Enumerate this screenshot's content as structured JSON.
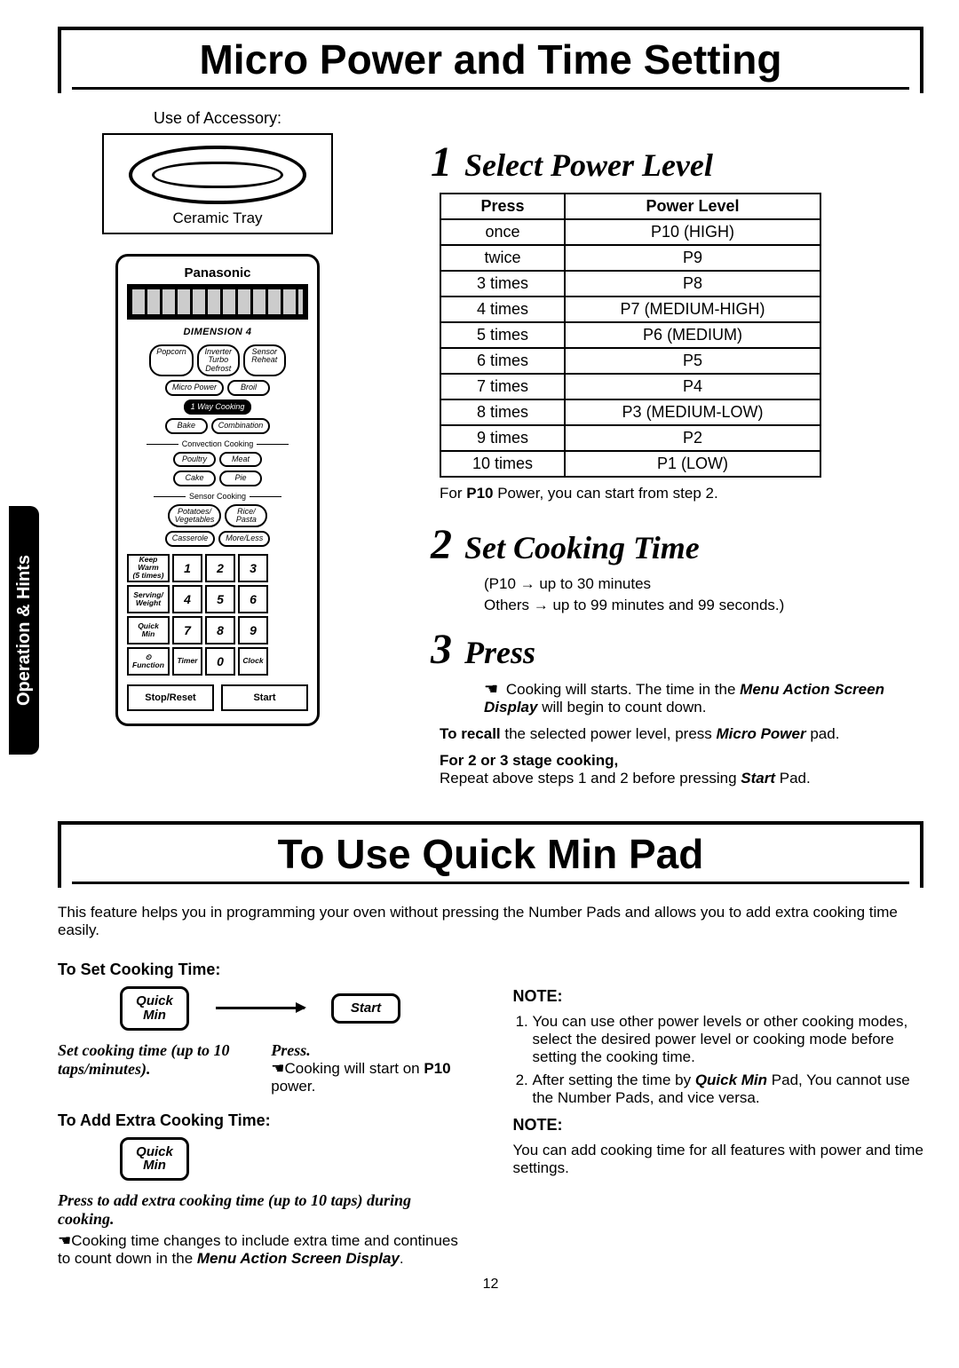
{
  "side_tab": "Operation & Hints",
  "section1_title": "Micro Power and Time Setting",
  "accessory": {
    "heading": "Use of Accessory:",
    "tray_label": "Ceramic Tray"
  },
  "panel": {
    "brand": "Panasonic",
    "model": "DIMENSION 4",
    "row1": [
      "Popcorn",
      "Inverter\nTurbo\nDefrost",
      "Sensor\nReheat"
    ],
    "row2": [
      "Micro Power",
      "Broil"
    ],
    "row2b": "1 Way Cooking",
    "row3": [
      "Bake",
      "Combination"
    ],
    "conv_label": "Convection Cooking",
    "row4": [
      "Poultry",
      "Meat"
    ],
    "row5": [
      "Cake",
      "Pie"
    ],
    "sensor_label": "Sensor Cooking",
    "row6": [
      "Potatoes/\nVegetables",
      "Rice/\nPasta"
    ],
    "row7": [
      "Casserole",
      "More/Less"
    ],
    "side_labels": [
      "Keep\nWarm\n(5 times)",
      "Serving/\nWeight",
      "Quick\nMin",
      "⏲\nFunction"
    ],
    "numbers": [
      "1",
      "2",
      "3",
      "4",
      "5",
      "6",
      "7",
      "8",
      "9",
      "Timer",
      "0",
      "Clock"
    ],
    "bottom": [
      "Stop/Reset",
      "Start"
    ]
  },
  "step1": {
    "title": "Select Power Level",
    "table_headers": [
      "Press",
      "Power Level"
    ],
    "rows": [
      [
        "once",
        "P10 (HIGH)"
      ],
      [
        "twice",
        "P9"
      ],
      [
        "3 times",
        "P8"
      ],
      [
        "4 times",
        "P7 (MEDIUM-HIGH)"
      ],
      [
        "5 times",
        "P6 (MEDIUM)"
      ],
      [
        "6 times",
        "P5"
      ],
      [
        "7 times",
        "P4"
      ],
      [
        "8 times",
        "P3 (MEDIUM-LOW)"
      ],
      [
        "9 times",
        "P2"
      ],
      [
        "10 times",
        "P1 (LOW)"
      ]
    ],
    "footnote_a": "For ",
    "footnote_b": "P10",
    "footnote_c": " Power, you can start from step 2."
  },
  "step2": {
    "title": "Set Cooking Time",
    "line1": "(P10 → up to 30 minutes",
    "line2": "Others → up to 99 minutes and 99 seconds.)"
  },
  "step3": {
    "title": "Press",
    "p1_a": "Cooking will starts. The time in the ",
    "p1_b": "Menu Action Screen Display",
    "p1_c": " will begin to count down.",
    "p2_a": "To recall",
    "p2_b": " the selected power level, press ",
    "p2_c": "Micro Power",
    "p2_d": " pad.",
    "p3_a": "For 2 or 3 stage cooking,",
    "p3_b": "Repeat above steps 1 and 2 before pressing ",
    "p3_c": "Start",
    "p3_d": " Pad."
  },
  "section2_title": "To Use Quick Min Pad",
  "qm_intro": "This feature helps you in programming your oven without pressing the Number Pads and allows you to add extra cooking time easily.",
  "qm_set_head": "To Set Cooking Time:",
  "qm_pad_quick": "Quick\nMin",
  "qm_pad_start": "Start",
  "qm_left_set_a": "Set cooking time (up to 10 taps/minutes).",
  "qm_left_press": "Press.",
  "qm_left_press_sub_a": "Cooking will start on ",
  "qm_left_press_sub_b": "P10",
  "qm_left_press_sub_c": " power.",
  "qm_add_head": "To Add Extra Cooking Time:",
  "qm_add_text": "Press to add extra cooking time (up to 10 taps) during cooking.",
  "qm_add_sub_a": "Cooking time changes to include extra time and continues to count down in the ",
  "qm_add_sub_b": "Menu Action Screen Display",
  "qm_add_sub_c": ".",
  "qm_note1_head": "NOTE:",
  "qm_note1_items": [
    "You can use other power levels or other cooking modes, select the desired power level or cooking mode before setting the cooking time.",
    "After setting the time by Quick Min Pad, You cannot use the Number Pads, and vice versa."
  ],
  "qm_note1_item2_bold": "Quick Min",
  "qm_note2_head": "NOTE:",
  "qm_note2_text": "You can add cooking time for all features with power and time settings.",
  "page_number": "12"
}
